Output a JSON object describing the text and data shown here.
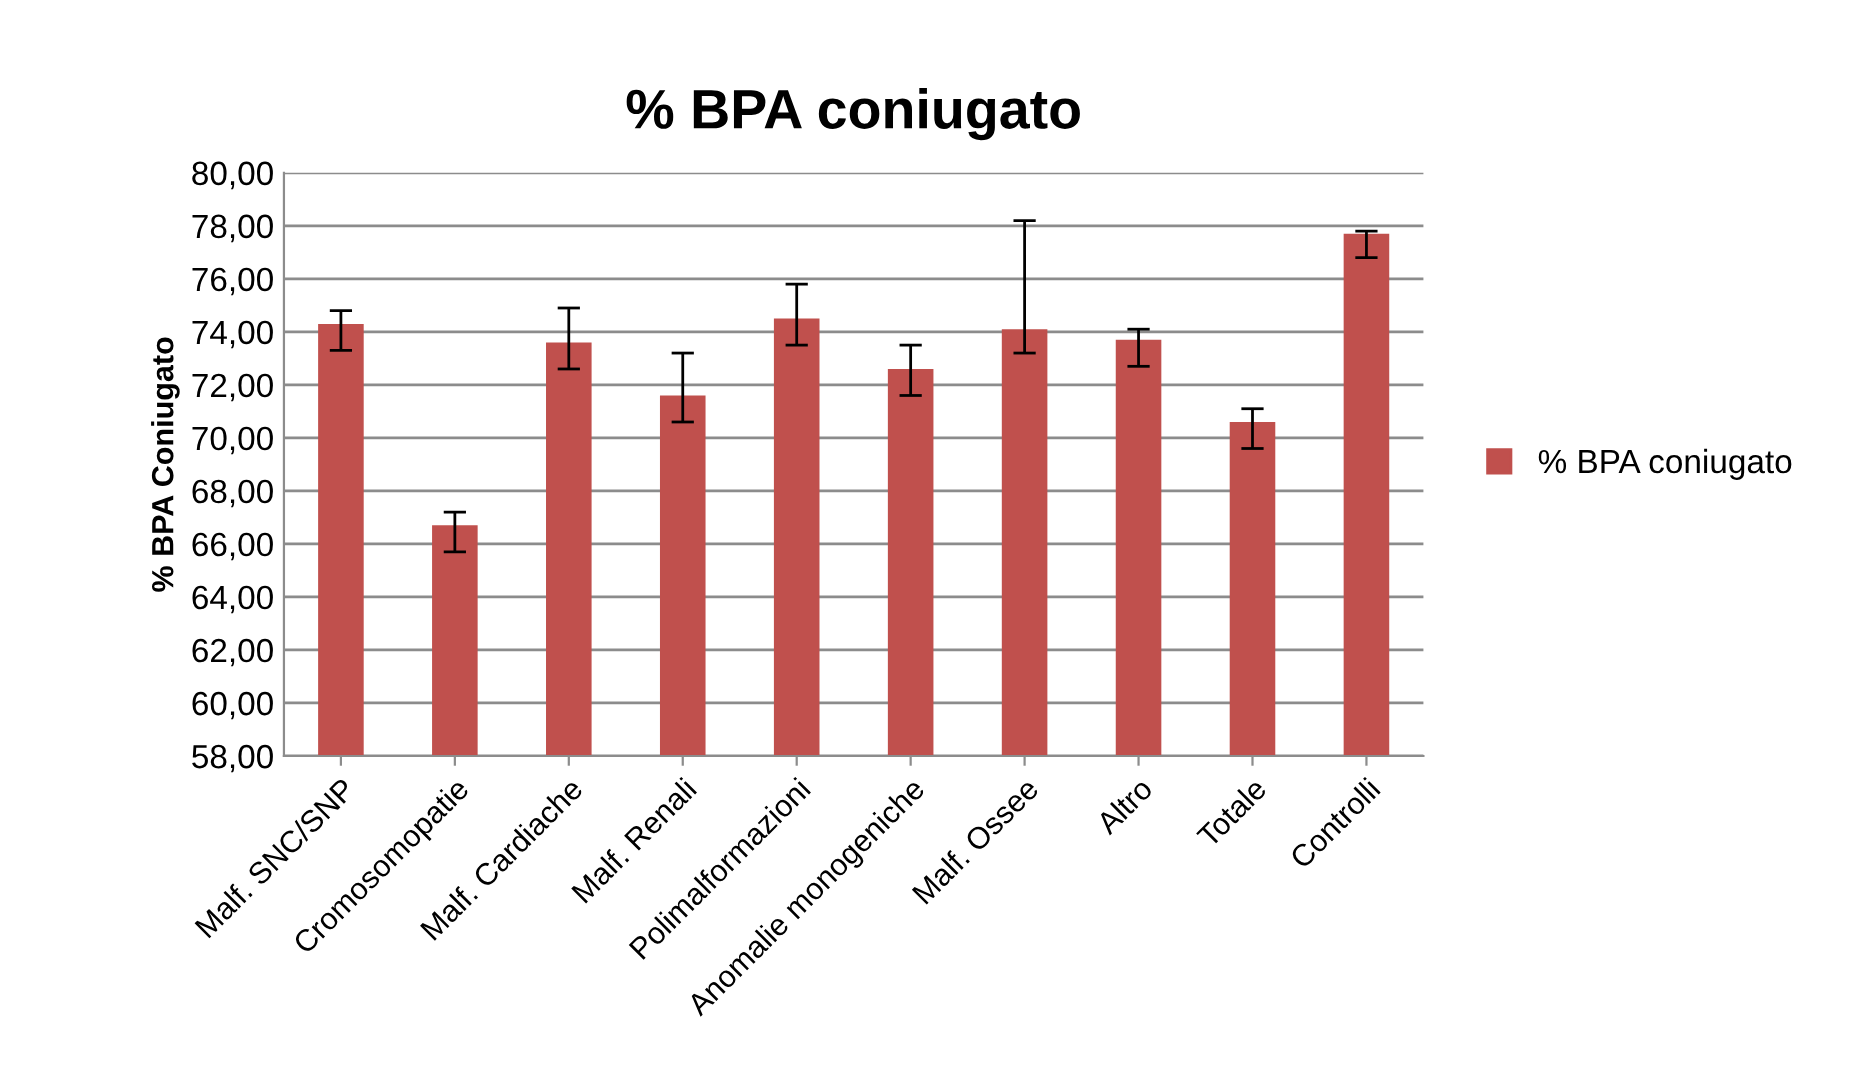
{
  "chart_data": {
    "type": "bar",
    "title": "% BPA coniugato",
    "ylabel": "% BPA Coniugato",
    "categories": [
      "Malf. SNC/SNP",
      "Cromosomopatie",
      "Malf. Cardiache",
      "Malf. Renali",
      "Polimalformazioni",
      "Anomalie monogeniche",
      "Malf. Ossee",
      "Altro",
      "Totale",
      "Controlli"
    ],
    "series": [
      {
        "name": "% BPA coniugato",
        "color": "#c0504d",
        "values": [
          74.3,
          66.7,
          73.6,
          71.6,
          74.5,
          72.6,
          74.1,
          73.7,
          70.6,
          77.7
        ],
        "errors": [
          [
            73.3,
            74.8
          ],
          [
            65.7,
            67.2
          ],
          [
            72.6,
            74.9
          ],
          [
            70.6,
            73.2
          ],
          [
            73.5,
            75.8
          ],
          [
            71.6,
            73.5
          ],
          [
            73.2,
            78.2
          ],
          [
            72.7,
            74.1
          ],
          [
            69.6,
            71.1
          ],
          [
            76.8,
            77.8
          ]
        ]
      }
    ],
    "ylim": [
      58,
      80
    ],
    "yticks": [
      {
        "value": 58,
        "label": "58,00"
      },
      {
        "value": 60,
        "label": "60,00"
      },
      {
        "value": 62,
        "label": "62,00"
      },
      {
        "value": 64,
        "label": "64,00"
      },
      {
        "value": 66,
        "label": "66,00"
      },
      {
        "value": 68,
        "label": "68,00"
      },
      {
        "value": 70,
        "label": "70,00"
      },
      {
        "value": 72,
        "label": "72,00"
      },
      {
        "value": 74,
        "label": "74,00"
      },
      {
        "value": 76,
        "label": "76,00"
      },
      {
        "value": 78,
        "label": "78,00"
      },
      {
        "value": 80,
        "label": "80,00"
      }
    ],
    "grid": "y",
    "legend": "right"
  }
}
